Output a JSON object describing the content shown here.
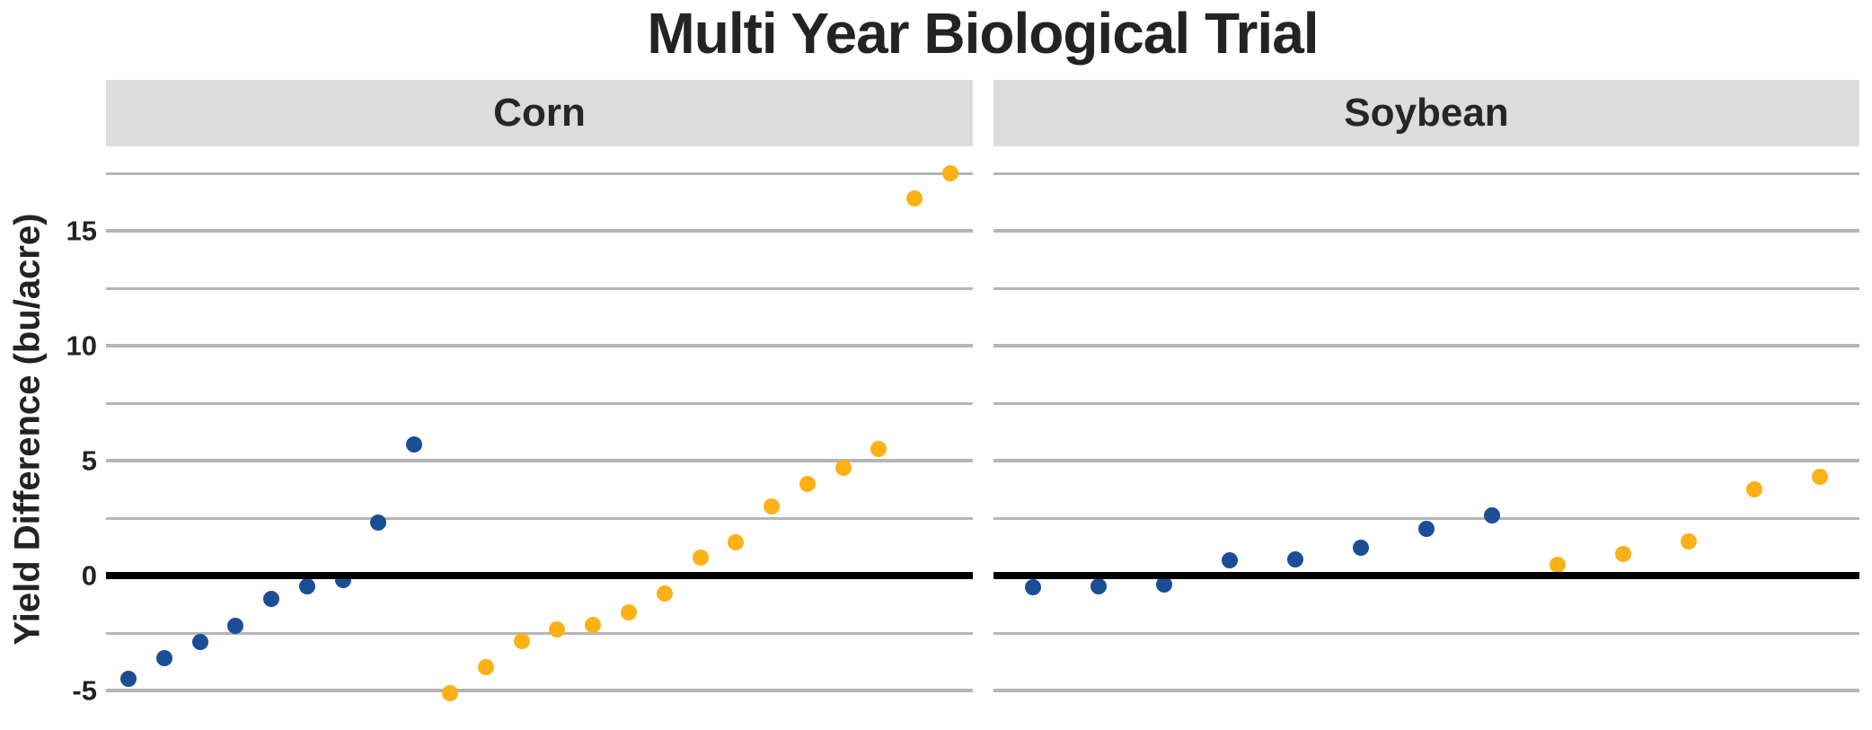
{
  "title": "Multi Year Biological Trial",
  "y_axis": {
    "label": "Yield Difference (bu/acre)",
    "ticks": [
      {
        "label": "15",
        "value": 15
      },
      {
        "label": "10",
        "value": 10
      },
      {
        "label": "5",
        "value": 5
      },
      {
        "label": "0",
        "value": 0
      },
      {
        "label": "-5",
        "value": -5
      }
    ],
    "gridlines": [
      17.5,
      15,
      12.5,
      10,
      7.5,
      5,
      2.5,
      -2.5,
      -5
    ],
    "major_gridlines": [
      15,
      10,
      5,
      -5
    ]
  },
  "colors": {
    "blue_series": "#1B4E95",
    "yellow_series": "#FBB117",
    "facet_band": "#DCDCDC",
    "gridline": "#B5B5B5",
    "zero_line": "#000000",
    "text": "#232323"
  },
  "chart_data": {
    "type": "scatter",
    "title": "Multi Year Biological Trial",
    "xlabel": "",
    "ylabel": "Yield Difference (bu/acre)",
    "ylim": [
      -5.8,
      18.7
    ],
    "grid": "horizontal-only",
    "legend": "none",
    "zero_reference_line": 0,
    "facets": [
      {
        "label": "Corn",
        "note": "dots sorted ascending within each color group, evenly spaced",
        "series": [
          {
            "name": "blue",
            "color": "#1B4E95",
            "values": [
              -4.5,
              -3.6,
              -2.9,
              -2.2,
              -1.0,
              -0.45,
              -0.2,
              2.3,
              5.7
            ]
          },
          {
            "name": "yellow",
            "color": "#FBB117",
            "values": [
              -5.1,
              -4.0,
              -2.85,
              -2.35,
              -2.15,
              -1.6,
              -0.8,
              0.8,
              1.45,
              3.0,
              4.0,
              4.7,
              5.5,
              16.4,
              17.5
            ]
          }
        ]
      },
      {
        "label": "Soybean",
        "note": "dots sorted ascending within each color group, evenly spaced",
        "series": [
          {
            "name": "blue",
            "color": "#1B4E95",
            "values": [
              -0.5,
              -0.45,
              -0.4,
              0.65,
              0.7,
              1.2,
              2.05,
              2.6
            ]
          },
          {
            "name": "yellow",
            "color": "#FBB117",
            "values": [
              0.45,
              0.95,
              1.5,
              3.75,
              4.3
            ]
          }
        ]
      }
    ]
  }
}
